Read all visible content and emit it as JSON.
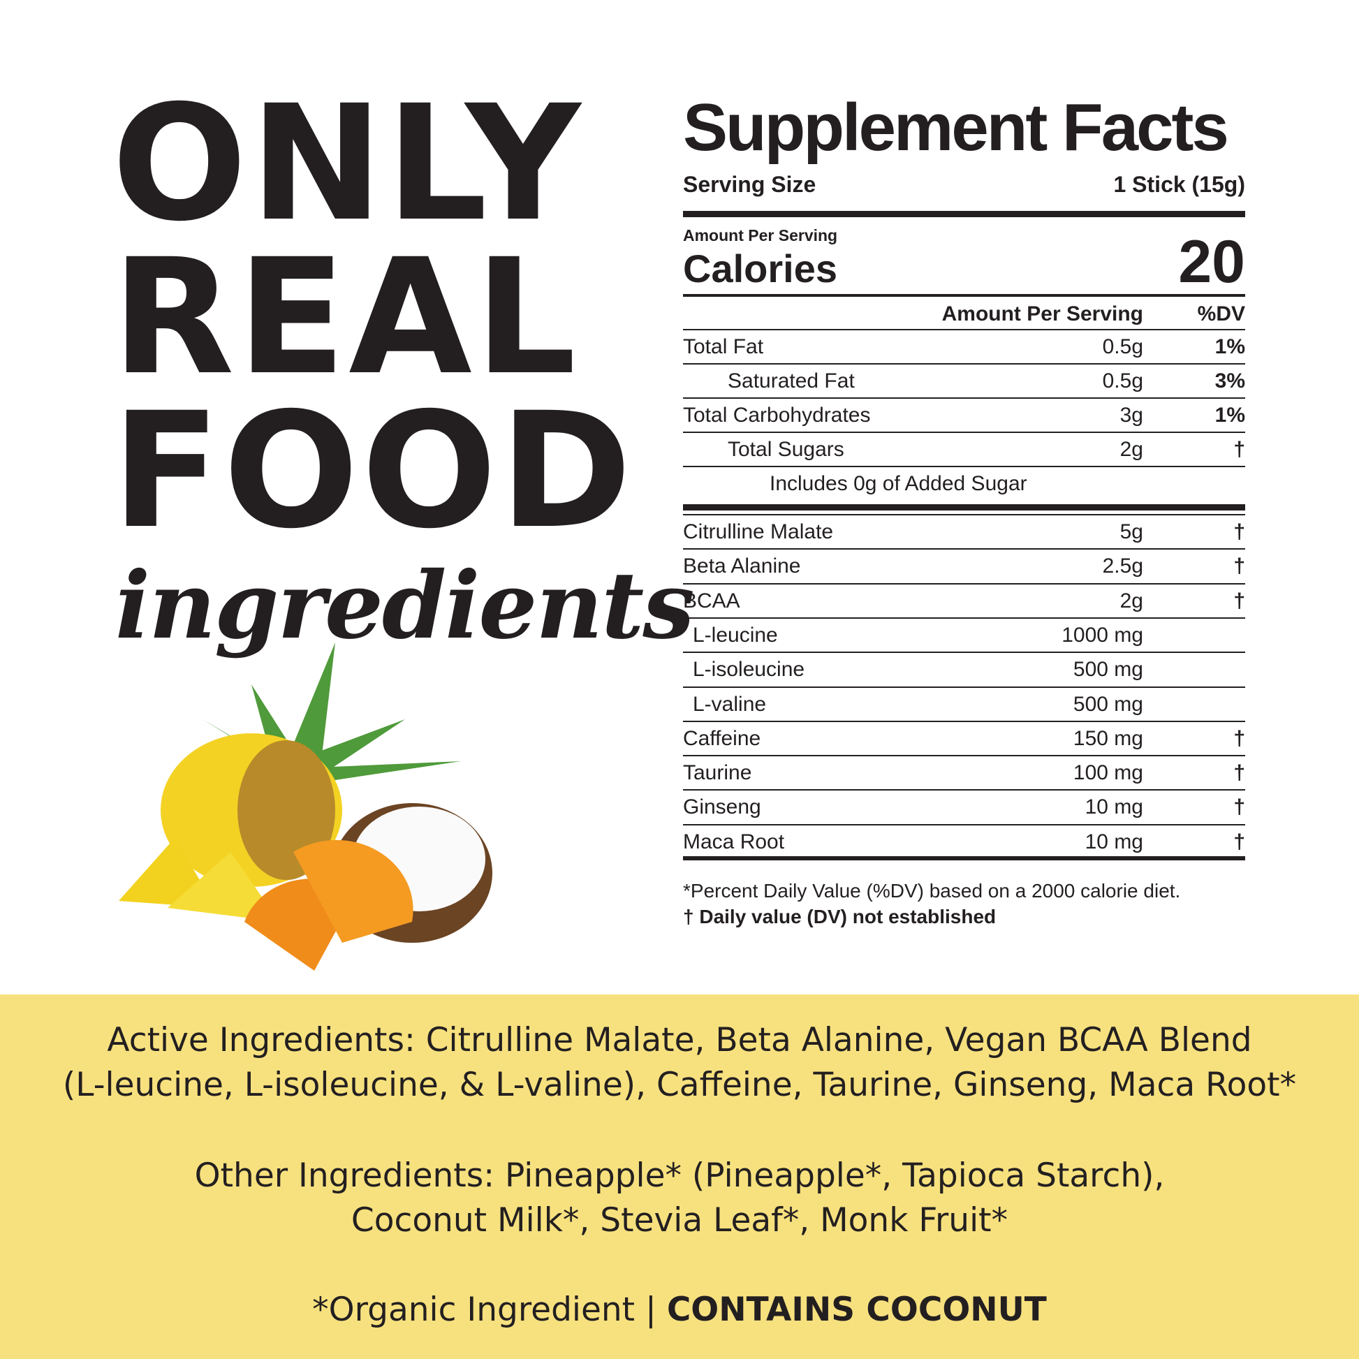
{
  "headline": {
    "line1": "ONLY",
    "line2": "REAL",
    "line3": "FOOD",
    "script": "ingredients"
  },
  "facts": {
    "title": "Supplement Facts",
    "serving_label": "Serving Size",
    "serving_value": "1 Stick (15g)",
    "amount_per_serving": "Amount Per Serving",
    "calories_label": "Calories",
    "calories_value": "20",
    "col_amount": "Amount Per Serving",
    "col_dv": "%DV",
    "rows": [
      {
        "name": "Total Fat",
        "amount": "0.5g",
        "dv": "1%"
      },
      {
        "name": "Saturated Fat",
        "amount": "0.5g",
        "dv": "3%"
      },
      {
        "name": "Total Carbohydrates",
        "amount": "3g",
        "dv": "1%"
      },
      {
        "name": "Total Sugars",
        "amount": "2g",
        "dv": "†"
      },
      {
        "name": "Includes 0g of Added Sugar",
        "amount": "",
        "dv": ""
      }
    ],
    "ingredients": [
      {
        "name": "Citrulline Malate",
        "amount": "5g",
        "dv": "†"
      },
      {
        "name": "Beta Alanine",
        "amount": "2.5g",
        "dv": "†"
      },
      {
        "name": "BCAA",
        "amount": "2g",
        "dv": "†"
      },
      {
        "name": "L-leucine",
        "amount": "1000 mg",
        "dv": ""
      },
      {
        "name": "L-isoleucine",
        "amount": "500 mg",
        "dv": ""
      },
      {
        "name": "L-valine",
        "amount": "500 mg",
        "dv": ""
      },
      {
        "name": "Caffeine",
        "amount": "150 mg",
        "dv": "†"
      },
      {
        "name": "Taurine",
        "amount": "100 mg",
        "dv": "†"
      },
      {
        "name": "Ginseng",
        "amount": "10 mg",
        "dv": "†"
      },
      {
        "name": "Maca Root",
        "amount": "10 mg",
        "dv": "†"
      }
    ],
    "footnote1": "*Percent Daily Value (%DV) based on a 2000 calorie diet.",
    "footnote2": "† Daily value (DV) not established"
  },
  "band": {
    "color": "#f7e17f",
    "active1": "Active Ingredients: Citrulline Malate, Beta Alanine, Vegan BCAA Blend",
    "active2": "(L-leucine, L-isoleucine, & L-valine), Caffeine, Taurine, Ginseng, Maca Root*",
    "other1": "Other Ingredients: Pineapple* (Pineapple*, Tapioca Starch),",
    "other2": "Coconut Milk*, Stevia Leaf*, Monk Fruit*",
    "organic": "*Organic Ingredient | ",
    "contains": "CONTAINS COCONUT"
  }
}
